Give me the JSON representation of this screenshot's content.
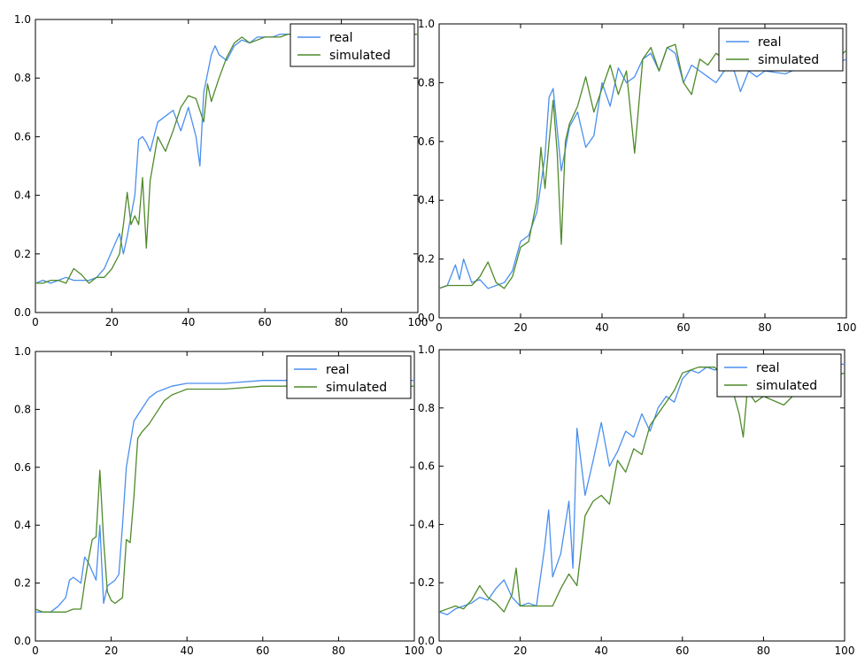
{
  "colors": {
    "real": "#4a8fef",
    "simulated": "#4f8a2a"
  },
  "chart_data": [
    {
      "type": "line",
      "xlim": [
        0,
        100
      ],
      "ylim": [
        0,
        1.0
      ],
      "x_ticks": [
        0,
        20,
        40,
        60,
        80,
        100
      ],
      "x_tick_labels": [
        "0",
        "20",
        "40",
        "60",
        "80",
        "100"
      ],
      "y_ticks": [
        0,
        0.2,
        0.4,
        0.6,
        0.8,
        1.0
      ],
      "y_tick_labels": [
        "0.0",
        "0.2",
        "0.4",
        "0.6",
        "0.8",
        "1.0"
      ],
      "legend_position": "top-right",
      "series": [
        {
          "name": "real",
          "color_key": "real",
          "x": [
            0,
            2,
            4,
            6,
            8,
            10,
            12,
            14,
            16,
            18,
            20,
            22,
            23,
            24,
            26,
            27,
            28,
            29,
            30,
            32,
            34,
            36,
            38,
            40,
            42,
            43,
            44,
            46,
            47,
            48,
            50,
            52,
            54,
            56,
            58,
            60,
            62,
            64,
            66,
            68,
            70,
            100
          ],
          "y": [
            0.1,
            0.11,
            0.1,
            0.11,
            0.12,
            0.11,
            0.11,
            0.11,
            0.12,
            0.15,
            0.21,
            0.27,
            0.2,
            0.26,
            0.4,
            0.59,
            0.6,
            0.58,
            0.55,
            0.65,
            0.67,
            0.69,
            0.62,
            0.7,
            0.6,
            0.5,
            0.75,
            0.88,
            0.91,
            0.88,
            0.86,
            0.91,
            0.93,
            0.92,
            0.94,
            0.94,
            0.94,
            0.95,
            0.95,
            0.95,
            0.95,
            0.95
          ]
        },
        {
          "name": "simulated",
          "color_key": "simulated",
          "x": [
            0,
            2,
            4,
            6,
            8,
            10,
            12,
            14,
            16,
            18,
            20,
            22,
            23,
            24,
            25,
            26,
            27,
            28,
            29,
            30,
            32,
            34,
            36,
            38,
            40,
            42,
            44,
            45,
            46,
            48,
            50,
            52,
            54,
            56,
            58,
            60,
            62,
            64,
            66,
            68,
            70,
            100
          ],
          "y": [
            0.1,
            0.1,
            0.11,
            0.11,
            0.1,
            0.15,
            0.13,
            0.1,
            0.12,
            0.12,
            0.15,
            0.2,
            0.3,
            0.41,
            0.3,
            0.33,
            0.3,
            0.46,
            0.22,
            0.45,
            0.6,
            0.55,
            0.62,
            0.7,
            0.74,
            0.73,
            0.65,
            0.78,
            0.72,
            0.8,
            0.87,
            0.92,
            0.94,
            0.92,
            0.93,
            0.94,
            0.94,
            0.94,
            0.95,
            0.95,
            0.95,
            0.95
          ]
        }
      ]
    },
    {
      "type": "line",
      "xlim": [
        0,
        100
      ],
      "ylim": [
        0,
        1.0
      ],
      "x_ticks": [
        0,
        20,
        40,
        60,
        80,
        100
      ],
      "x_tick_labels": [
        "0",
        "20",
        "40",
        "60",
        "80",
        "100"
      ],
      "y_ticks": [
        0,
        0.2,
        0.4,
        0.6,
        0.8,
        1.0
      ],
      "y_tick_labels": [
        "0.0",
        "0.2",
        "0.4",
        "0.6",
        "0.8",
        "1.0"
      ],
      "legend_position": "top-right",
      "series": [
        {
          "name": "real",
          "color_key": "real",
          "x": [
            0,
            2,
            4,
            5,
            6,
            8,
            10,
            12,
            14,
            16,
            18,
            20,
            22,
            24,
            26,
            27,
            28,
            30,
            32,
            34,
            36,
            38,
            40,
            42,
            44,
            46,
            48,
            50,
            52,
            54,
            56,
            58,
            60,
            62,
            64,
            66,
            68,
            70,
            72,
            74,
            76,
            78,
            80,
            85,
            90,
            95,
            100
          ],
          "y": [
            0.1,
            0.11,
            0.18,
            0.13,
            0.2,
            0.12,
            0.13,
            0.1,
            0.11,
            0.12,
            0.16,
            0.26,
            0.28,
            0.36,
            0.55,
            0.75,
            0.78,
            0.5,
            0.65,
            0.7,
            0.58,
            0.62,
            0.8,
            0.72,
            0.85,
            0.8,
            0.82,
            0.88,
            0.9,
            0.84,
            0.92,
            0.9,
            0.8,
            0.86,
            0.84,
            0.82,
            0.8,
            0.84,
            0.86,
            0.77,
            0.84,
            0.82,
            0.84,
            0.83,
            0.86,
            0.85,
            0.88
          ]
        },
        {
          "name": "simulated",
          "color_key": "simulated",
          "x": [
            0,
            2,
            4,
            6,
            8,
            10,
            12,
            14,
            16,
            18,
            20,
            22,
            24,
            25,
            26,
            27,
            28,
            29,
            30,
            31,
            32,
            34,
            36,
            38,
            40,
            42,
            44,
            46,
            48,
            50,
            52,
            54,
            56,
            58,
            60,
            62,
            64,
            66,
            68,
            70,
            72,
            74,
            76,
            78,
            80,
            85,
            90,
            95,
            100
          ],
          "y": [
            0.1,
            0.11,
            0.11,
            0.11,
            0.11,
            0.14,
            0.19,
            0.12,
            0.1,
            0.14,
            0.24,
            0.26,
            0.4,
            0.58,
            0.44,
            0.6,
            0.74,
            0.56,
            0.25,
            0.6,
            0.66,
            0.72,
            0.82,
            0.7,
            0.78,
            0.86,
            0.76,
            0.84,
            0.56,
            0.88,
            0.92,
            0.84,
            0.92,
            0.93,
            0.8,
            0.76,
            0.88,
            0.86,
            0.9,
            0.88,
            0.86,
            0.85,
            0.88,
            0.84,
            0.86,
            0.84,
            0.86,
            0.85,
            0.91
          ]
        }
      ]
    },
    {
      "type": "line",
      "xlim": [
        0,
        100
      ],
      "ylim": [
        0,
        1.0
      ],
      "x_ticks": [
        0,
        20,
        40,
        60,
        80,
        100
      ],
      "x_tick_labels": [
        "0",
        "20",
        "40",
        "60",
        "80",
        "100"
      ],
      "y_ticks": [
        0,
        0.2,
        0.4,
        0.6,
        0.8,
        1.0
      ],
      "y_tick_labels": [
        "0.0",
        "0.2",
        "0.4",
        "0.6",
        "0.8",
        "1.0"
      ],
      "legend_position": "top-right",
      "series": [
        {
          "name": "real",
          "color_key": "real",
          "x": [
            0,
            2,
            4,
            6,
            8,
            9,
            10,
            12,
            13,
            14,
            15,
            16,
            17,
            18,
            19,
            20,
            21,
            22,
            23,
            24,
            26,
            28,
            30,
            32,
            34,
            36,
            40,
            50,
            60,
            70,
            80,
            100
          ],
          "y": [
            0.1,
            0.1,
            0.1,
            0.12,
            0.15,
            0.21,
            0.22,
            0.2,
            0.29,
            0.27,
            0.24,
            0.21,
            0.4,
            0.13,
            0.19,
            0.2,
            0.21,
            0.23,
            0.4,
            0.6,
            0.76,
            0.8,
            0.84,
            0.86,
            0.87,
            0.88,
            0.89,
            0.89,
            0.9,
            0.9,
            0.9,
            0.9
          ]
        },
        {
          "name": "simulated",
          "color_key": "simulated",
          "x": [
            0,
            2,
            4,
            6,
            8,
            10,
            12,
            13,
            14,
            15,
            16,
            17,
            18,
            19,
            20,
            21,
            22,
            23,
            24,
            25,
            26,
            27,
            28,
            30,
            32,
            34,
            36,
            38,
            40,
            50,
            60,
            70,
            80,
            100
          ],
          "y": [
            0.11,
            0.1,
            0.1,
            0.1,
            0.1,
            0.11,
            0.11,
            0.2,
            0.28,
            0.35,
            0.36,
            0.59,
            0.35,
            0.17,
            0.14,
            0.13,
            0.14,
            0.15,
            0.35,
            0.34,
            0.5,
            0.7,
            0.72,
            0.75,
            0.79,
            0.83,
            0.85,
            0.86,
            0.87,
            0.87,
            0.88,
            0.88,
            0.88,
            0.88
          ]
        }
      ]
    },
    {
      "type": "line",
      "xlim": [
        0,
        100
      ],
      "ylim": [
        0,
        1.0
      ],
      "x_ticks": [
        0,
        20,
        40,
        60,
        80,
        100
      ],
      "x_tick_labels": [
        "0",
        "20",
        "40",
        "60",
        "80",
        "100"
      ],
      "y_ticks": [
        0,
        0.2,
        0.4,
        0.6,
        0.8,
        1.0
      ],
      "y_tick_labels": [
        "0.0",
        "0.2",
        "0.4",
        "0.6",
        "0.8",
        "1.0"
      ],
      "legend_position": "top-right",
      "series": [
        {
          "name": "real",
          "color_key": "real",
          "x": [
            0,
            2,
            4,
            6,
            8,
            10,
            12,
            14,
            16,
            18,
            20,
            22,
            24,
            26,
            27,
            28,
            30,
            32,
            33,
            34,
            36,
            38,
            40,
            42,
            44,
            46,
            48,
            50,
            52,
            54,
            56,
            58,
            60,
            62,
            64,
            66,
            68,
            70,
            75,
            80,
            85,
            90,
            95,
            100
          ],
          "y": [
            0.1,
            0.09,
            0.11,
            0.12,
            0.13,
            0.15,
            0.14,
            0.18,
            0.21,
            0.15,
            0.12,
            0.13,
            0.12,
            0.32,
            0.45,
            0.22,
            0.3,
            0.48,
            0.25,
            0.73,
            0.5,
            0.62,
            0.75,
            0.6,
            0.65,
            0.72,
            0.7,
            0.78,
            0.72,
            0.8,
            0.84,
            0.82,
            0.9,
            0.93,
            0.92,
            0.94,
            0.93,
            0.95,
            0.94,
            0.93,
            0.94,
            0.94,
            0.95,
            0.95
          ]
        },
        {
          "name": "simulated",
          "color_key": "simulated",
          "x": [
            0,
            2,
            4,
            6,
            8,
            10,
            12,
            14,
            16,
            18,
            19,
            20,
            22,
            24,
            26,
            28,
            30,
            32,
            34,
            36,
            38,
            40,
            42,
            44,
            46,
            48,
            50,
            52,
            54,
            56,
            58,
            60,
            62,
            64,
            66,
            68,
            70,
            72,
            74,
            75,
            76,
            78,
            80,
            85,
            90,
            95,
            100
          ],
          "y": [
            0.1,
            0.11,
            0.12,
            0.11,
            0.14,
            0.19,
            0.15,
            0.13,
            0.1,
            0.16,
            0.25,
            0.12,
            0.12,
            0.12,
            0.12,
            0.12,
            0.18,
            0.23,
            0.19,
            0.43,
            0.48,
            0.5,
            0.47,
            0.62,
            0.58,
            0.66,
            0.64,
            0.74,
            0.78,
            0.82,
            0.86,
            0.92,
            0.93,
            0.94,
            0.94,
            0.94,
            0.9,
            0.88,
            0.78,
            0.7,
            0.86,
            0.82,
            0.84,
            0.81,
            0.88,
            0.9,
            0.92
          ]
        }
      ]
    }
  ]
}
